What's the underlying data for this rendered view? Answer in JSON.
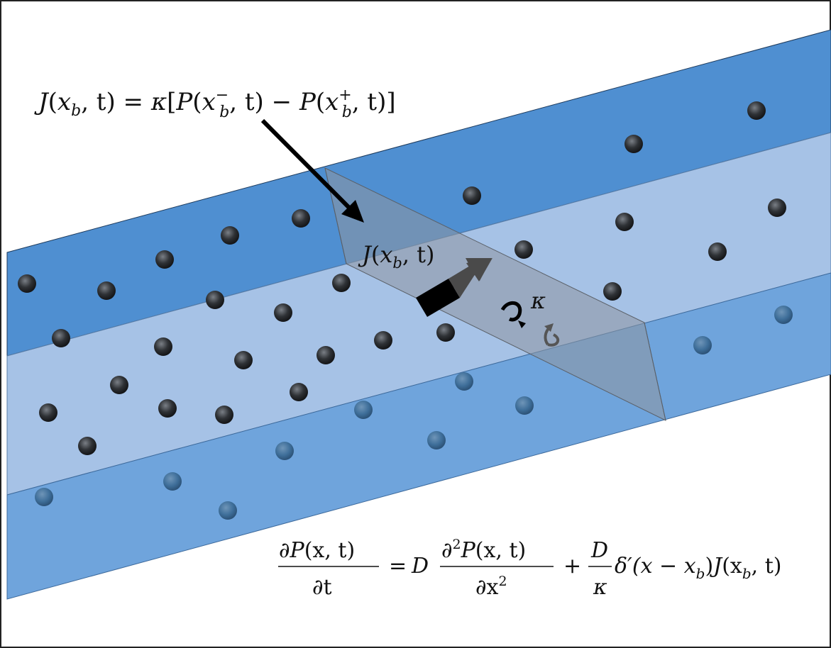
{
  "colors": {
    "band_dark": "#4f8fd1",
    "band_light": "#a6c2e6",
    "band_lower": "#6fa4dc",
    "barrier": "#8e96a0",
    "particle": "#2f3236",
    "particle_submerged": "#3f6f9a",
    "arrow": "#000000"
  },
  "equations": {
    "flux_definition": {
      "J": "J",
      "lp": "(",
      "x": "x",
      "b": "b",
      "comma_t_rp": ", t) = ",
      "kappa": "κ",
      "lb": "[",
      "P": "P",
      "lp2": "(",
      "x2": "x",
      "b_minus_sub": "b",
      "minus_sup": "−",
      "comma_t_rp2": ", t) − ",
      "P2": "P",
      "lp3": "(",
      "x3": "x",
      "b_plus_sub": "b",
      "plus_sup": "+",
      "comma_t_rp3": ", t)]"
    },
    "flux_label": {
      "J": "J",
      "lp": "(",
      "x": "x",
      "b": "b",
      "rest": ", t)"
    },
    "kappa_label": "κ",
    "diffusion": {
      "lhs_num_d": "∂",
      "lhs_num_P": "P",
      "lhs_num_args": "(x, t)",
      "lhs_den": "∂t",
      "eq": "=",
      "D": "D",
      "rhs1_num_d": "∂",
      "rhs1_num_sup": "2",
      "rhs1_num_P": "P",
      "rhs1_num_args": "(x, t)",
      "rhs1_den": "∂x",
      "rhs1_den_sup": "2",
      "plus": "+",
      "frac_num": "D",
      "frac_den": "κ",
      "delta": "δ′(x − x",
      "delta_sub": "b",
      "delta_close": ")",
      "J": "J",
      "J_args_open": "(x",
      "J_args_sub": "b",
      "J_args_close": ", t)"
    }
  }
}
